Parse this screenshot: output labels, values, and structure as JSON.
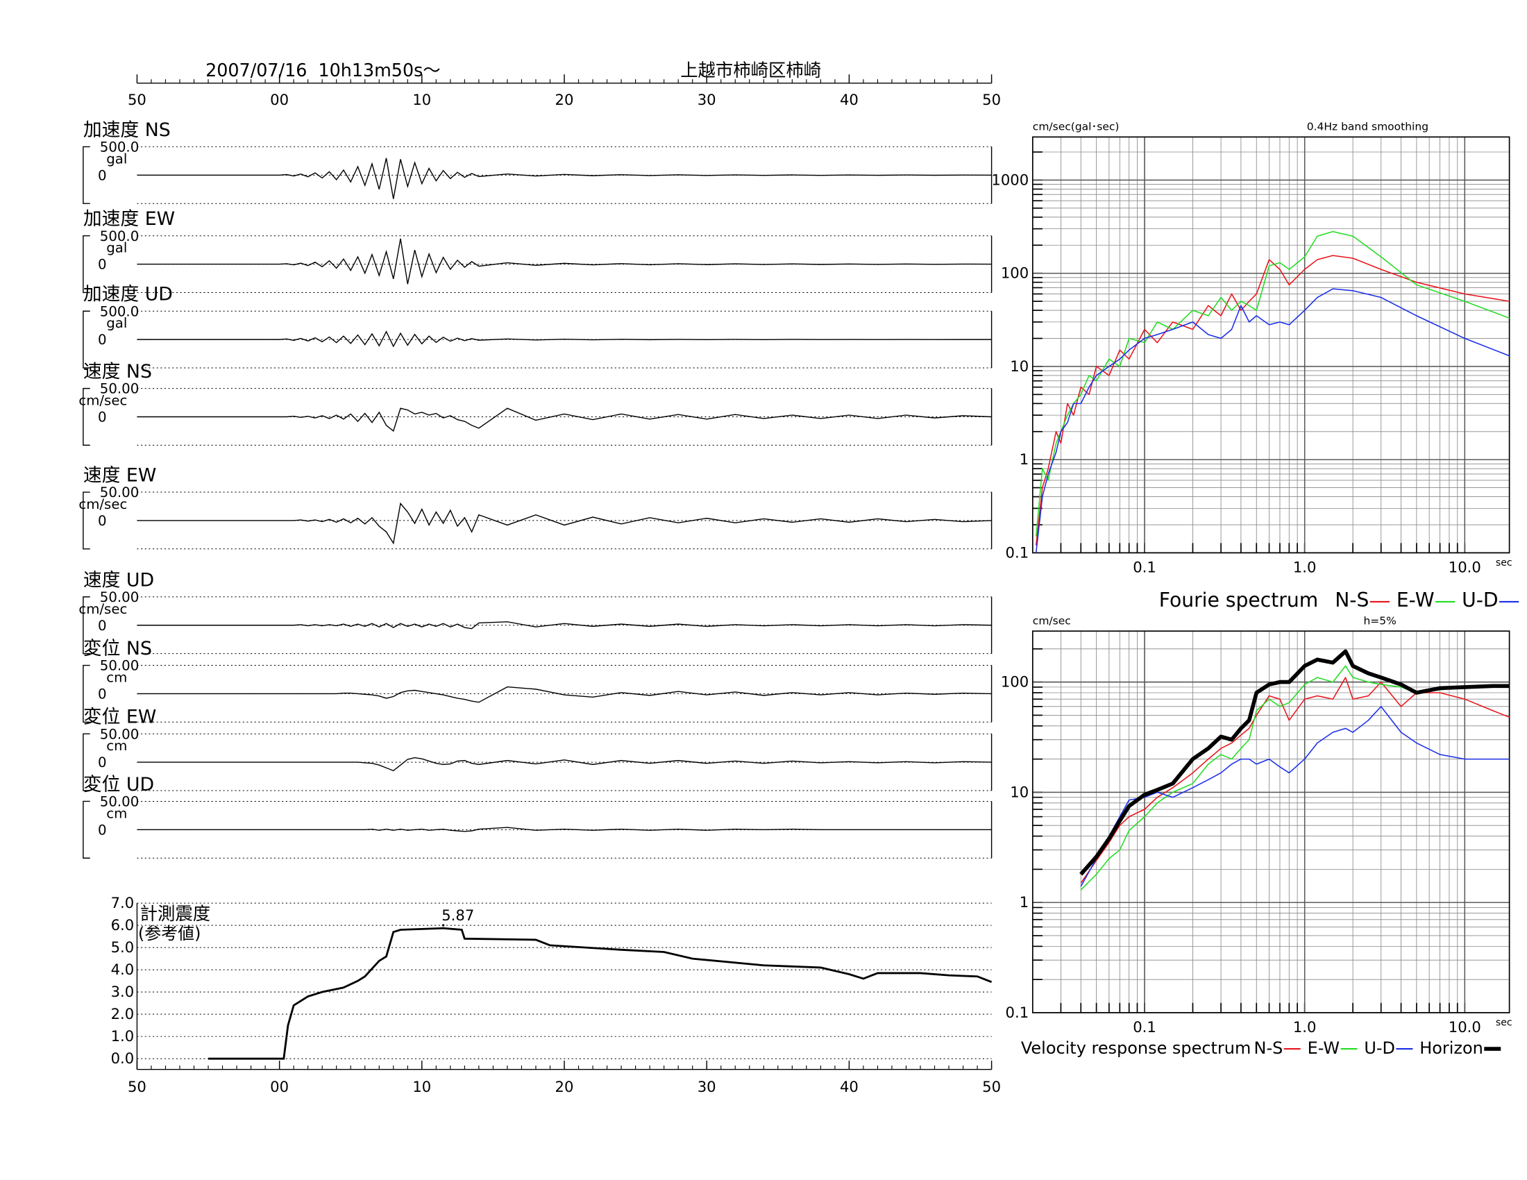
{
  "chart_data": [
    {
      "type": "waveforms",
      "title": "2007/07/16  10h13m50s〜",
      "subtitle": "上越市柿崎区柿崎",
      "xlim": [
        0,
        60
      ],
      "xticks": [
        {
          "value": 0,
          "label": "50"
        },
        {
          "value": 10,
          "label": "00"
        },
        {
          "value": 20,
          "label": "10"
        },
        {
          "value": 30,
          "label": "20"
        },
        {
          "value": 40,
          "label": "30"
        },
        {
          "value": 50,
          "label": "40"
        },
        {
          "value": 60,
          "label": "50"
        }
      ],
      "x": [
        0,
        10,
        10.5,
        11,
        11.5,
        12,
        12.5,
        13,
        13.5,
        14,
        14.5,
        15,
        15.5,
        16,
        16.5,
        17,
        17.5,
        18,
        18.5,
        19,
        19.5,
        20,
        20.5,
        21,
        21.5,
        22,
        22.5,
        23,
        23.5,
        24,
        26,
        28,
        30,
        32,
        34,
        36,
        38,
        40,
        42,
        44,
        46,
        48,
        50,
        52,
        54,
        56,
        58,
        60
      ],
      "panels": [
        {
          "name": "加速度 NS",
          "unit": "gal",
          "ylim": [
            -500,
            500
          ],
          "yticks": [
            0,
            {
              "value": 500,
              "label": "500.0"
            }
          ],
          "values": [
            0,
            0,
            10,
            -15,
            20,
            -30,
            40,
            -50,
            60,
            -80,
            90,
            -120,
            150,
            -180,
            200,
            -250,
            300,
            -420,
            280,
            -200,
            220,
            -150,
            120,
            -100,
            80,
            -60,
            50,
            -40,
            30,
            -25,
            20,
            -15,
            12,
            -10,
            8,
            -8,
            6,
            -6,
            5,
            -5,
            4,
            -4,
            3,
            -3,
            3,
            -2,
            2,
            0
          ]
        },
        {
          "name": "加速度 EW",
          "unit": "gal",
          "ylim": [
            -500,
            500
          ],
          "yticks": [
            0,
            {
              "value": 500,
              "label": "500.0"
            }
          ],
          "values": [
            0,
            0,
            8,
            -12,
            18,
            -25,
            35,
            -45,
            60,
            -70,
            90,
            -110,
            130,
            -160,
            170,
            -200,
            220,
            -260,
            450,
            -350,
            250,
            -220,
            180,
            -150,
            120,
            -90,
            70,
            -55,
            45,
            -35,
            25,
            -20,
            15,
            -12,
            10,
            -10,
            8,
            -8,
            6,
            -6,
            5,
            -5,
            4,
            -4,
            3,
            -3,
            2,
            0
          ]
        },
        {
          "name": "加速度 UD",
          "unit": "gal",
          "ylim": [
            -500,
            500
          ],
          "yticks": [
            0,
            {
              "value": 500,
              "label": "500.0"
            }
          ],
          "values": [
            0,
            0,
            10,
            -15,
            20,
            -25,
            30,
            -40,
            45,
            -55,
            60,
            -70,
            80,
            -90,
            100,
            -110,
            140,
            -120,
            110,
            -100,
            90,
            -75,
            60,
            -50,
            40,
            -30,
            25,
            -20,
            15,
            -12,
            10,
            -8,
            6,
            -5,
            4,
            -3,
            3,
            -2,
            2,
            -2,
            2,
            -1,
            1,
            -1,
            1,
            -1,
            0,
            0
          ]
        },
        {
          "name": "速度 NS",
          "unit": "cm/sec",
          "ylim": [
            -50,
            50
          ],
          "yticks": [
            0,
            {
              "value": 50,
              "label": "50.00"
            }
          ],
          "values": [
            0,
            0,
            0,
            1,
            -1,
            1,
            -2,
            2,
            -3,
            3,
            -4,
            5,
            -8,
            6,
            -10,
            8,
            -15,
            -25,
            15,
            12,
            5,
            8,
            3,
            6,
            -2,
            2,
            -5,
            -8,
            -15,
            -20,
            15,
            -6,
            5,
            -5,
            5,
            -4,
            4,
            -4,
            4,
            -3,
            3,
            -3,
            3,
            -3,
            3,
            -2,
            2,
            0
          ]
        },
        {
          "name": "速度 EW",
          "unit": "cm/sec",
          "ylim": [
            -50,
            50
          ],
          "yticks": [
            0,
            {
              "value": 50,
              "label": "50.00"
            }
          ],
          "values": [
            0,
            0,
            0,
            0,
            1,
            -1,
            1,
            -2,
            2,
            -3,
            3,
            -4,
            4,
            -6,
            5,
            -10,
            -20,
            -40,
            30,
            15,
            -5,
            20,
            -8,
            15,
            -5,
            18,
            -10,
            5,
            -20,
            10,
            -8,
            10,
            -8,
            6,
            -6,
            5,
            -4,
            4,
            -4,
            3,
            -3,
            3,
            -3,
            3,
            -2,
            2,
            -2,
            0
          ]
        },
        {
          "name": "速度 UD",
          "unit": "cm/sec",
          "ylim": [
            -50,
            50
          ],
          "yticks": [
            0,
            {
              "value": 50,
              "label": "50.00"
            }
          ],
          "values": [
            0,
            0,
            0,
            0,
            1,
            -1,
            1,
            -1,
            1,
            -1,
            2,
            -2,
            2,
            -2,
            3,
            -3,
            3,
            -4,
            3,
            -2,
            2,
            -3,
            2,
            -2,
            3,
            -3,
            2,
            -4,
            -6,
            4,
            6,
            -3,
            3,
            -2,
            2,
            -2,
            2,
            -2,
            1,
            -1,
            1,
            -1,
            1,
            -1,
            1,
            -1,
            1,
            0
          ]
        },
        {
          "name": "変位 NS",
          "unit": "cm",
          "ylim": [
            -50,
            50
          ],
          "yticks": [
            0,
            {
              "value": 50,
              "label": "50.00"
            }
          ],
          "values": [
            0,
            0,
            0,
            0,
            0,
            0,
            0,
            0,
            0,
            0,
            1,
            1,
            0,
            -1,
            -2,
            -4,
            -8,
            -5,
            2,
            5,
            6,
            4,
            2,
            0,
            -2,
            -5,
            -8,
            -10,
            -13,
            -15,
            12,
            8,
            -2,
            -6,
            2,
            -3,
            4,
            -2,
            3,
            -3,
            2,
            -2,
            2,
            -2,
            1,
            -1,
            1,
            0
          ]
        },
        {
          "name": "変位 EW",
          "unit": "cm",
          "ylim": [
            -50,
            50
          ],
          "yticks": [
            0,
            {
              "value": 50,
              "label": "50.00"
            }
          ],
          "values": [
            0,
            0,
            0,
            0,
            0,
            0,
            0,
            0,
            0,
            0,
            0,
            0,
            0,
            -1,
            -2,
            -5,
            -10,
            -15,
            -5,
            5,
            8,
            6,
            2,
            -2,
            -4,
            -3,
            2,
            3,
            -2,
            -4,
            3,
            -3,
            4,
            -4,
            3,
            -2,
            3,
            -2,
            2,
            -2,
            2,
            -1,
            1,
            -1,
            1,
            -1,
            1,
            0
          ]
        },
        {
          "name": "変位 UD",
          "unit": "cm",
          "ylim": [
            -50,
            50
          ],
          "yticks": [
            0,
            {
              "value": 50,
              "label": "50.00"
            }
          ],
          "values": [
            0,
            0,
            0,
            0,
            0,
            0,
            0,
            0,
            0,
            0,
            0,
            0,
            0,
            0,
            1,
            -1,
            1,
            -1,
            1,
            -1,
            0,
            1,
            -1,
            0,
            1,
            -1,
            -2,
            -3,
            -2,
            1,
            4,
            -1,
            1,
            -1,
            1,
            -1,
            1,
            -1,
            1,
            0,
            1,
            0,
            0,
            0,
            0,
            0,
            0,
            0
          ]
        }
      ]
    },
    {
      "type": "line",
      "title": "計測震度",
      "subtitle": "(参考値)",
      "xlim": [
        0,
        60
      ],
      "xticks": [
        {
          "value": 0,
          "label": "50"
        },
        {
          "value": 10,
          "label": "00"
        },
        {
          "value": 20,
          "label": "10"
        },
        {
          "value": 30,
          "label": "20"
        },
        {
          "value": 40,
          "label": "30"
        },
        {
          "value": 50,
          "label": "40"
        },
        {
          "value": 60,
          "label": "50"
        }
      ],
      "ylim": [
        0,
        7
      ],
      "yticks": [
        {
          "value": 0,
          "label": "0.0"
        },
        {
          "value": 1,
          "label": "1.0"
        },
        {
          "value": 2,
          "label": "2.0"
        },
        {
          "value": 3,
          "label": "3.0"
        },
        {
          "value": 4,
          "label": "4.0"
        },
        {
          "value": 5,
          "label": "5.0"
        },
        {
          "value": 6,
          "label": "6.0"
        },
        {
          "value": 7,
          "label": "7.0"
        }
      ],
      "grid": true,
      "x": [
        5,
        10.3,
        10.6,
        11,
        12,
        13,
        14.5,
        15.5,
        16,
        17,
        17.5,
        18,
        18.5,
        21.5,
        22.8,
        23,
        28,
        29,
        34,
        37,
        39,
        44,
        48,
        50,
        51,
        52,
        55,
        57,
        59,
        60
      ],
      "values": [
        0,
        0,
        1.5,
        2.4,
        2.8,
        3.0,
        3.2,
        3.5,
        3.7,
        4.4,
        4.6,
        5.7,
        5.8,
        5.87,
        5.8,
        5.4,
        5.35,
        5.1,
        4.9,
        4.8,
        4.5,
        4.2,
        4.1,
        3.8,
        3.6,
        3.85,
        3.85,
        3.75,
        3.7,
        3.45
      ],
      "annotations": [
        {
          "x": 21.5,
          "y": 5.87,
          "label": "5.87"
        }
      ]
    },
    {
      "type": "loglog",
      "title": "Fourie spectrum",
      "ylabel": "cm/sec(gal･sec)",
      "note": "0.4Hz band smoothing",
      "xlabel": "sec",
      "xlim": [
        0.02,
        19
      ],
      "xticks": [
        0.1,
        {
          "value": 1,
          "label": "1.0"
        },
        {
          "value": 10,
          "label": "10.0"
        }
      ],
      "ylim": [
        0.1,
        2900
      ],
      "yticks": [
        0.1,
        1,
        10,
        100,
        1000
      ],
      "grid": true,
      "x": [
        0.021,
        0.023,
        0.025,
        0.028,
        0.03,
        0.033,
        0.036,
        0.04,
        0.045,
        0.05,
        0.06,
        0.07,
        0.08,
        0.1,
        0.12,
        0.15,
        0.2,
        0.25,
        0.3,
        0.35,
        0.4,
        0.45,
        0.5,
        0.6,
        0.7,
        0.8,
        1,
        1.2,
        1.5,
        2,
        3,
        5,
        10,
        19
      ],
      "series": [
        {
          "name": "N-S",
          "color": "#e8141a",
          "values": [
            0.12,
            0.5,
            0.8,
            2,
            1.5,
            4,
            3,
            6,
            5,
            10,
            8,
            15,
            12,
            25,
            18,
            30,
            25,
            45,
            35,
            60,
            40,
            50,
            60,
            140,
            110,
            75,
            110,
            140,
            155,
            145,
            110,
            80,
            60,
            50
          ]
        },
        {
          "name": "E-W",
          "color": "#22dd22",
          "values": [
            0.15,
            0.8,
            0.6,
            1.5,
            2,
            3,
            4,
            5,
            8,
            7,
            12,
            10,
            20,
            18,
            30,
            25,
            40,
            35,
            55,
            40,
            50,
            45,
            40,
            120,
            130,
            110,
            150,
            250,
            280,
            250,
            150,
            75,
            50,
            33
          ]
        },
        {
          "name": "U-D",
          "color": "#1a2ee8",
          "values": [
            0.1,
            0.4,
            0.7,
            1.2,
            2,
            2.5,
            4,
            4,
            6,
            8,
            10,
            12,
            15,
            20,
            22,
            25,
            30,
            22,
            20,
            25,
            45,
            30,
            35,
            28,
            30,
            28,
            40,
            55,
            68,
            65,
            55,
            35,
            20,
            13
          ]
        }
      ]
    },
    {
      "type": "loglog",
      "title": "Velocity response spectrum",
      "ylabel": "cm/sec",
      "note": "h=5%",
      "xlabel": "sec",
      "xlim": [
        0.02,
        19
      ],
      "xticks": [
        0.1,
        {
          "value": 1,
          "label": "1.0"
        },
        {
          "value": 10,
          "label": "10.0"
        }
      ],
      "ylim": [
        0.1,
        290
      ],
      "yticks": [
        0.1,
        1,
        10,
        100
      ],
      "grid": true,
      "x": [
        0.04,
        0.05,
        0.06,
        0.07,
        0.08,
        0.1,
        0.12,
        0.15,
        0.2,
        0.25,
        0.3,
        0.35,
        0.4,
        0.45,
        0.5,
        0.6,
        0.7,
        0.8,
        1,
        1.2,
        1.5,
        1.8,
        2,
        2.5,
        3,
        4,
        5,
        7,
        10,
        15,
        19
      ],
      "series": [
        {
          "name": "N-S",
          "color": "#e8141a",
          "values": [
            1.5,
            2.4,
            3.5,
            5,
            6,
            7,
            9,
            11,
            15,
            20,
            25,
            28,
            33,
            38,
            50,
            75,
            70,
            45,
            70,
            75,
            70,
            110,
            70,
            75,
            100,
            60,
            80,
            80,
            70,
            55,
            48
          ]
        },
        {
          "name": "E-W",
          "color": "#22dd22",
          "values": [
            1.3,
            1.8,
            2.5,
            3,
            4.5,
            6,
            8,
            10,
            12,
            18,
            22,
            20,
            25,
            30,
            55,
            70,
            60,
            65,
            95,
            110,
            100,
            140,
            110,
            100,
            95,
            90,
            80,
            85,
            90,
            92,
            92
          ]
        },
        {
          "name": "U-D",
          "color": "#1a2ee8",
          "values": [
            1.4,
            2.5,
            4,
            6,
            8.5,
            9,
            10,
            9,
            11,
            13,
            15,
            18,
            20,
            20,
            18,
            20,
            17,
            15,
            20,
            28,
            35,
            38,
            35,
            45,
            60,
            35,
            28,
            22,
            20,
            20,
            20
          ]
        },
        {
          "name": "Horizon",
          "color": "#000000",
          "width": 4,
          "values": [
            1.8,
            2.6,
            3.8,
            5.5,
            7.5,
            9.5,
            10.5,
            12,
            20,
            25,
            32,
            30,
            38,
            45,
            80,
            95,
            100,
            100,
            140,
            160,
            150,
            190,
            140,
            120,
            110,
            95,
            80,
            88,
            90,
            92,
            92
          ]
        }
      ]
    }
  ]
}
